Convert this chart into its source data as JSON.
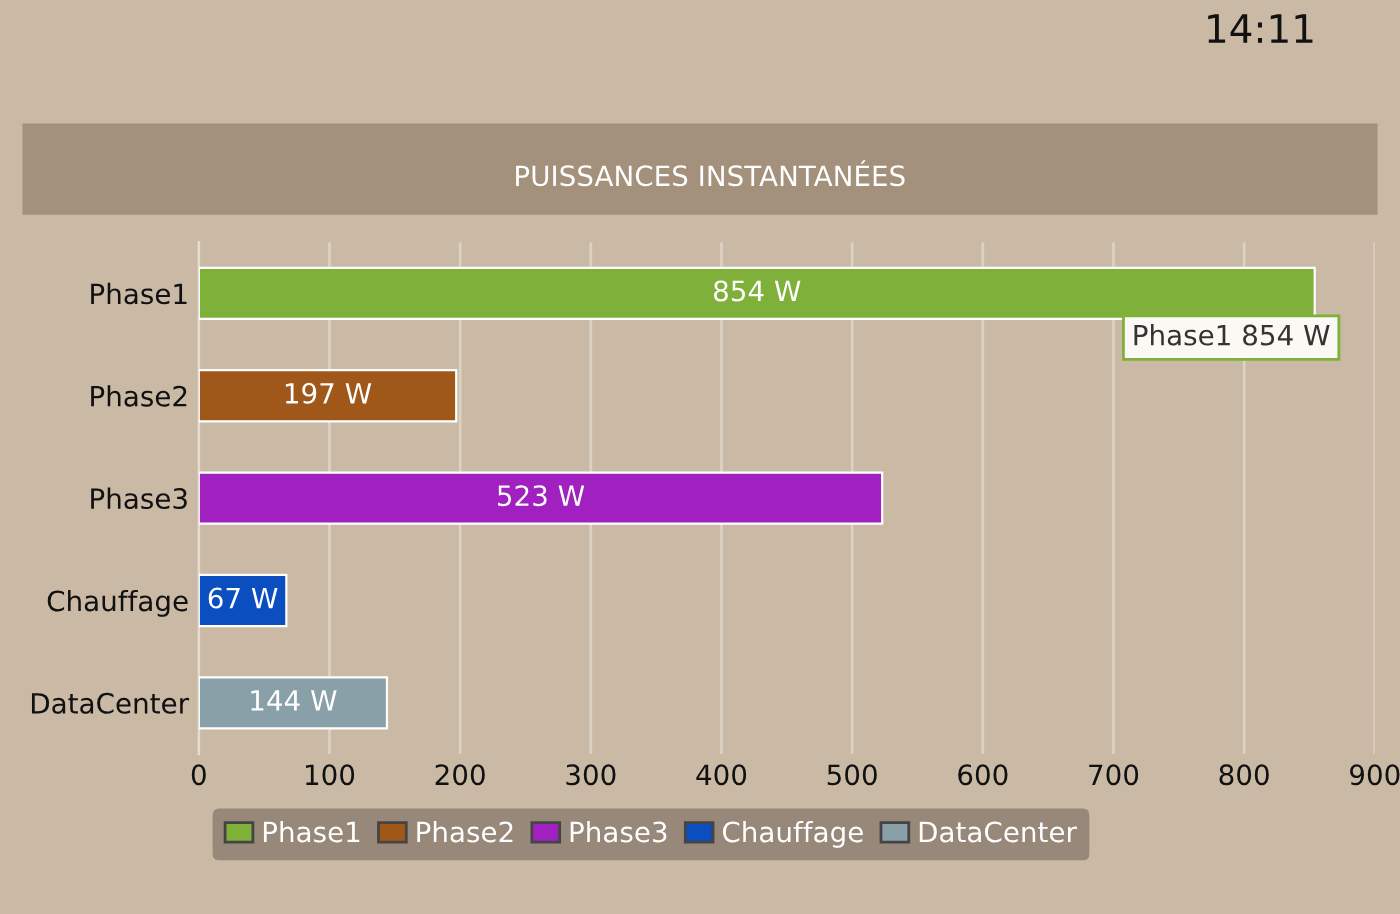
{
  "chart_data": {
    "type": "bar",
    "orientation": "horizontal",
    "title": "PUISSANCES INSTANTANÉES",
    "categories": [
      "Phase1",
      "Phase2",
      "Phase3",
      "Chauffage",
      "DataCenter"
    ],
    "series": [
      {
        "name": "Phase1",
        "color": "#7fb03a",
        "values": [
          854,
          null,
          null,
          null,
          null
        ],
        "value_labels": [
          "854 W",
          null,
          null,
          null,
          null
        ]
      },
      {
        "name": "Phase2",
        "color": "#a0581a",
        "values": [
          null,
          197,
          null,
          null,
          null
        ],
        "value_labels": [
          null,
          "197 W",
          null,
          null,
          null
        ]
      },
      {
        "name": "Phase3",
        "color": "#a020c0",
        "values": [
          null,
          null,
          523,
          null,
          null
        ],
        "value_labels": [
          null,
          null,
          "523 W",
          null,
          null
        ]
      },
      {
        "name": "Chauffage",
        "color": "#0a4ec0",
        "values": [
          null,
          null,
          null,
          67,
          null
        ],
        "value_labels": [
          null,
          null,
          null,
          "67 W",
          null
        ]
      },
      {
        "name": "DataCenter",
        "color": "#8aa0a8",
        "values": [
          null,
          null,
          null,
          null,
          144
        ],
        "value_labels": [
          null,
          null,
          null,
          null,
          "144 W"
        ]
      }
    ],
    "xlim": [
      0,
      900
    ],
    "xticks": [
      0,
      100,
      200,
      300,
      400,
      500,
      600,
      700,
      800,
      900
    ],
    "grid": "x",
    "legend": "bottom",
    "annotations": [
      "14:11",
      {
        "text": "Phase1 854 W",
        "x": 854,
        "y": "Phase1"
      }
    ]
  }
}
